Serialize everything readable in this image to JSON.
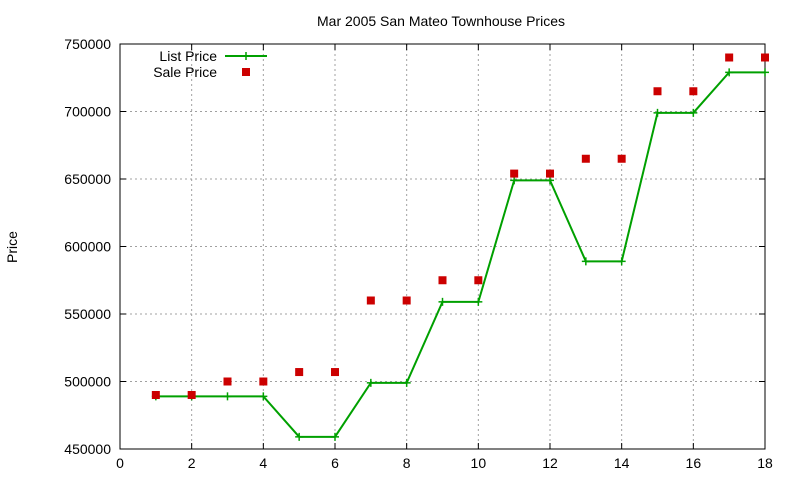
{
  "chart_data": {
    "type": "line",
    "title": "Mar 2005 San Mateo Townhouse Prices",
    "xlabel": "",
    "ylabel": "Price",
    "xlim": [
      0,
      18
    ],
    "ylim": [
      450000,
      750000
    ],
    "xticks": [
      0,
      2,
      4,
      6,
      8,
      10,
      12,
      14,
      16,
      18
    ],
    "yticks": [
      450000,
      500000,
      550000,
      600000,
      650000,
      700000,
      750000
    ],
    "grid": true,
    "legend_position": "top-left",
    "x": [
      1,
      2,
      3,
      4,
      5,
      6,
      7,
      8,
      9,
      10,
      11,
      12,
      13,
      14,
      15,
      16,
      17,
      18
    ],
    "series": [
      {
        "name": "List Price",
        "style": "line-points",
        "color": "#00a000",
        "values": [
          489000,
          489000,
          489000,
          489000,
          459000,
          459000,
          499000,
          499000,
          559000,
          559000,
          649000,
          649000,
          589000,
          589000,
          699000,
          699000,
          729000,
          729000
        ]
      },
      {
        "name": "Sale Price",
        "style": "points",
        "color": "#cc0000",
        "values": [
          490000,
          490000,
          500000,
          500000,
          507000,
          507000,
          560000,
          560000,
          575000,
          575000,
          654000,
          654000,
          665000,
          665000,
          715000,
          715000,
          740000,
          740000
        ]
      }
    ]
  }
}
